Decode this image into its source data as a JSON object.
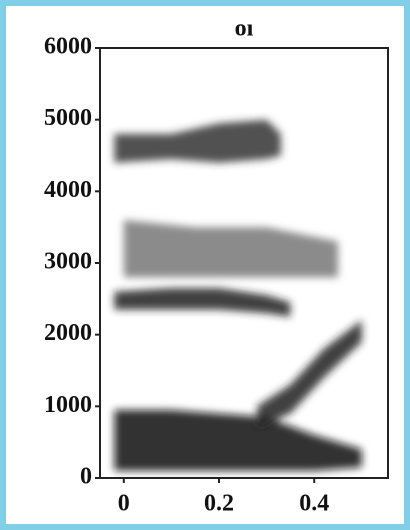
{
  "chart_data": {
    "type": "spectrogram",
    "title": "oı",
    "xlim": [
      -0.05,
      0.555
    ],
    "xticks": [
      0,
      0.2,
      0.4
    ],
    "ylim": [
      0,
      6000
    ],
    "yticks": [
      0,
      1000,
      2000,
      3000,
      4000,
      5000,
      6000
    ],
    "series": [
      {
        "color": "#111111",
        "x": [
          -0.02,
          0.1,
          0.2,
          0.3,
          0.4,
          0.5
        ],
        "low": [
          100,
          100,
          100,
          100,
          100,
          150
        ],
        "high": [
          950,
          950,
          900,
          850,
          600,
          400
        ]
      },
      {
        "color": "#222222",
        "x": [
          0.28,
          0.35,
          0.42,
          0.5
        ],
        "low": [
          700,
          900,
          1400,
          1900
        ],
        "high": [
          1000,
          1300,
          1800,
          2200
        ]
      },
      {
        "color": "#222222",
        "x": [
          -0.02,
          0.1,
          0.2,
          0.3,
          0.35
        ],
        "low": [
          2350,
          2350,
          2350,
          2300,
          2250
        ],
        "high": [
          2600,
          2650,
          2650,
          2550,
          2450
        ]
      },
      {
        "color": "#777777",
        "x": [
          0,
          0.15,
          0.3,
          0.45
        ],
        "low": [
          2800,
          2800,
          2800,
          2800
        ],
        "high": [
          3600,
          3500,
          3500,
          3300
        ]
      },
      {
        "color": "#333333",
        "x": [
          -0.02,
          0.1,
          0.2,
          0.3,
          0.33
        ],
        "low": [
          4400,
          4450,
          4400,
          4450,
          4500
        ],
        "high": [
          4800,
          4800,
          4950,
          5000,
          4800
        ]
      }
    ]
  }
}
